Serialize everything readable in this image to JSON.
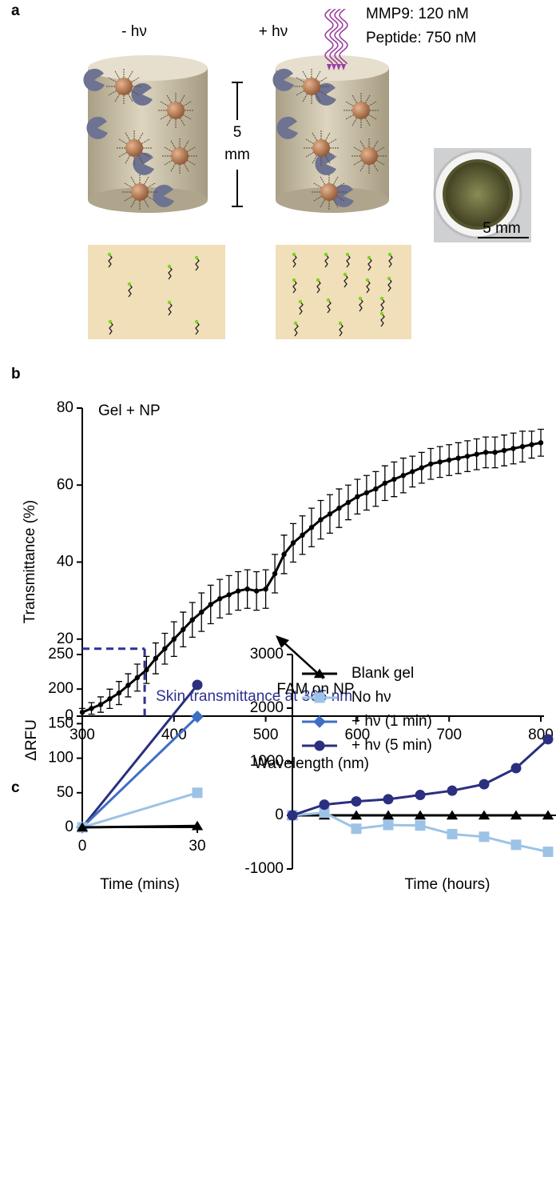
{
  "panel_a": {
    "label": "a",
    "minus_light": "- hν",
    "plus_light": "+ hν",
    "mmp9": "MMP9: 120 nM",
    "peptide": "Peptide: 750 nM",
    "scale_number": "5",
    "scale_unit": "mm",
    "photo_scale": "5 mm"
  },
  "chart_data": [
    {
      "type": "line",
      "panel_label": "b",
      "inset_label": "Gel + NP",
      "arrow_label": "FAM on NP",
      "xlabel": "Wavelength (nm)",
      "ylabel": "Transmittance (%)",
      "x": [
        300,
        310,
        320,
        330,
        340,
        350,
        360,
        370,
        380,
        390,
        400,
        410,
        420,
        430,
        440,
        450,
        460,
        470,
        480,
        490,
        500,
        510,
        520,
        530,
        540,
        550,
        560,
        570,
        580,
        590,
        600,
        610,
        620,
        630,
        640,
        650,
        660,
        670,
        680,
        690,
        700,
        710,
        720,
        730,
        740,
        750,
        760,
        770,
        780,
        790,
        800
      ],
      "series": [
        {
          "color": "#000000",
          "marker": "circle",
          "values": [
            1,
            2,
            3,
            4.5,
            6,
            8,
            10,
            12,
            15,
            17.5,
            20,
            22.5,
            25,
            27,
            29,
            30.5,
            31.5,
            32.5,
            33,
            32.5,
            33,
            37,
            42,
            45,
            47,
            49,
            51,
            52.5,
            54,
            55.5,
            57,
            58,
            59,
            60.5,
            61.5,
            62.5,
            63.5,
            64.5,
            65.5,
            66,
            66.5,
            67,
            67.5,
            68,
            68.5,
            68.5,
            69,
            69.5,
            70,
            70.5,
            71
          ],
          "errors": [
            1,
            1.5,
            2,
            2.5,
            3,
            3,
            3.5,
            3.5,
            4,
            4,
            4.5,
            4.5,
            4.5,
            5,
            5,
            5,
            5,
            5,
            5,
            5,
            5,
            5,
            5,
            5,
            5,
            5,
            5,
            5,
            5,
            4.5,
            4.5,
            4.5,
            4.5,
            4.5,
            4.5,
            4.5,
            4,
            4,
            4,
            4,
            4,
            4,
            4,
            4,
            4,
            4,
            4,
            4,
            4,
            3.5,
            3.5
          ]
        }
      ],
      "reference": {
        "x": 368,
        "y": 17.5,
        "label": "Skin transmittance at 365 nm",
        "color": "#2e3192"
      },
      "xlim": [
        300,
        800
      ],
      "xticks": [
        300,
        400,
        500,
        600,
        700,
        800
      ],
      "ylim": [
        0,
        80
      ],
      "yticks": [
        0,
        20,
        40,
        60,
        80
      ]
    },
    {
      "type": "line",
      "panel_label": "c",
      "xlabel": "Time (mins)",
      "ylabel": "ΔRFU",
      "x": [
        0,
        30
      ],
      "series": [
        {
          "color": "#2b2f7f",
          "marker": "circle",
          "values": [
            0,
            206
          ]
        },
        {
          "color": "#3e6fc4",
          "marker": "diamond",
          "values": [
            0,
            160
          ]
        },
        {
          "color": "#9cc3e6",
          "marker": "square",
          "values": [
            0,
            50
          ]
        },
        {
          "color": "#000000",
          "marker": "triangle",
          "values": [
            0,
            2
          ]
        }
      ],
      "xlim": [
        0,
        30
      ],
      "xticks": [
        0,
        30
      ],
      "ylim": [
        0,
        250
      ],
      "yticks": [
        0,
        50,
        100,
        150,
        200,
        250
      ]
    },
    {
      "type": "line",
      "xlabel": "Time (hours)",
      "categories": [
        null,
        null,
        null,
        null,
        null,
        null,
        null,
        null,
        null
      ],
      "series": [
        {
          "name": "Blank gel",
          "color": "#000000",
          "marker": "triangle",
          "values": [
            0,
            0,
            0,
            0,
            0,
            0,
            0,
            0,
            0
          ]
        },
        {
          "name": "No hν",
          "color": "#9cc3e6",
          "marker": "square",
          "values": [
            0,
            50,
            -250,
            -180,
            -190,
            -350,
            -400,
            -550,
            -680
          ]
        },
        {
          "name": "+ hν (1 min)",
          "color": "#3e6fc4",
          "marker": "diamond",
          "values": [
            null,
            null,
            null,
            null,
            null,
            null,
            null,
            null,
            null
          ]
        },
        {
          "name": "+ hν (5 min)",
          "color": "#2b2f7f",
          "marker": "circle",
          "values": [
            0,
            200,
            260,
            300,
            380,
            460,
            580,
            880,
            1420
          ]
        }
      ],
      "ylim": [
        -1000,
        3000
      ],
      "yticks": [
        -1000,
        0,
        1000,
        2000,
        3000
      ],
      "legend": "upper-left"
    }
  ]
}
